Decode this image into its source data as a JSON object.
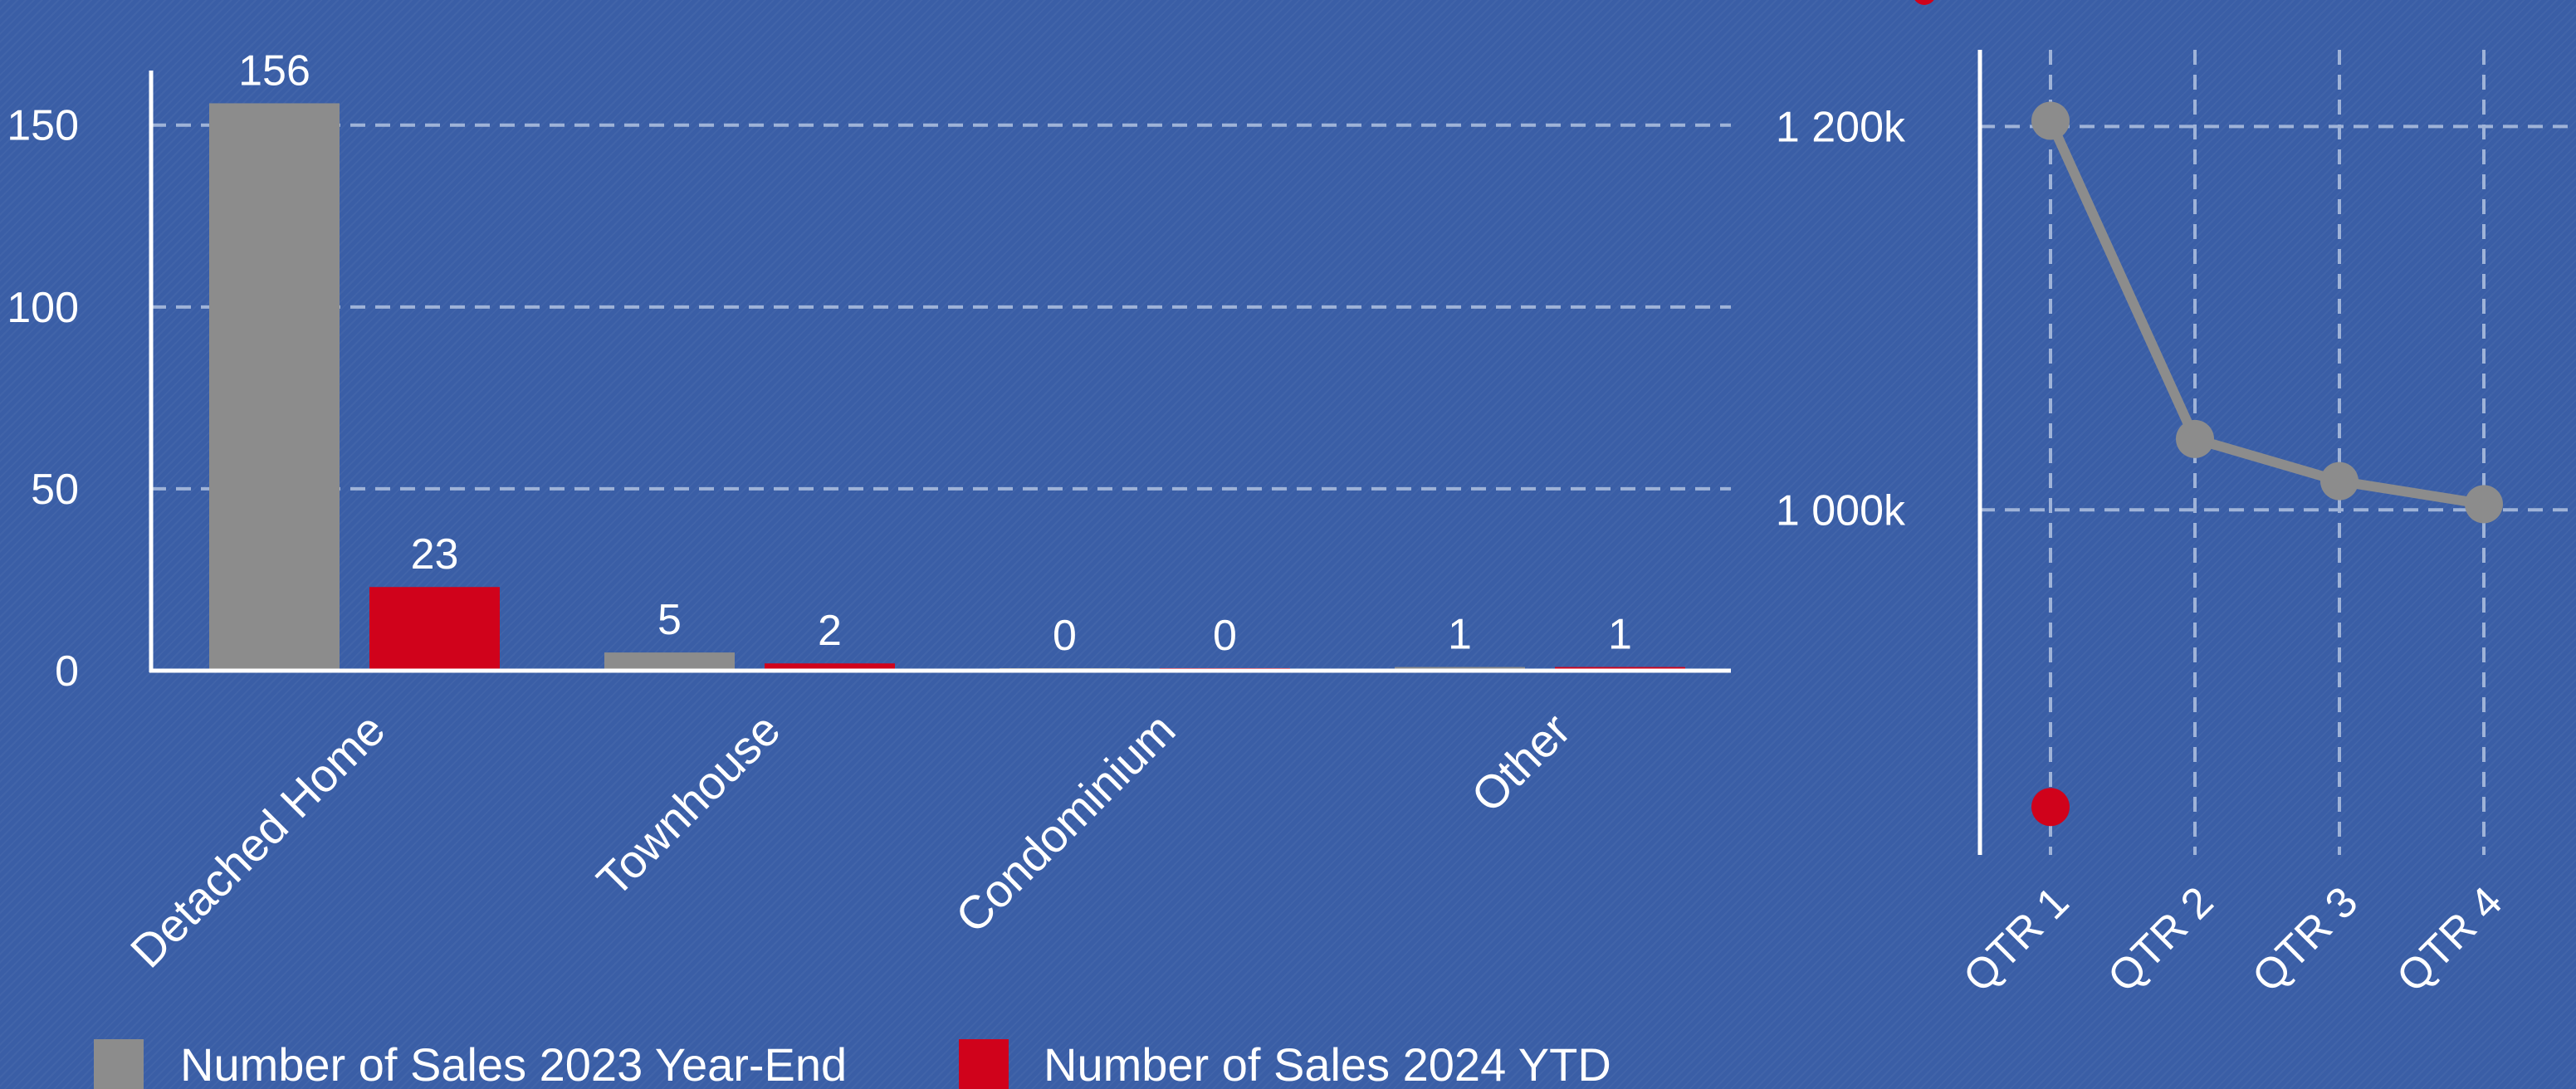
{
  "colors": {
    "background": "#3a5ea6",
    "series_2023": "#8c8c8c",
    "series_2024": "#d0021b",
    "axis": "#ffffff",
    "grid": "#9fb3d8",
    "text": "#ffffff"
  },
  "chart_data": [
    {
      "type": "bar",
      "categories": [
        "Detached Home",
        "Townhouse",
        "Condominium",
        "Other"
      ],
      "series": [
        {
          "name": "Number of Sales 2023 Year-End",
          "values": [
            156,
            5,
            0,
            1
          ],
          "color": "#8c8c8c"
        },
        {
          "name": "Number of Sales 2024 YTD",
          "values": [
            23,
            2,
            0,
            1
          ],
          "color": "#d0021b"
        }
      ],
      "yticks": [
        "0",
        "50",
        "100",
        "150"
      ],
      "ylim": [
        0,
        165
      ],
      "grid": true,
      "legend": "bottom-left"
    },
    {
      "type": "line",
      "categories": [
        "QTR 1",
        "QTR 2",
        "QTR 3",
        "QTR 4"
      ],
      "series": [
        {
          "values": [
            1203,
            1037,
            1015,
            1003
          ],
          "color": "#8c8c8c"
        },
        {
          "values": [
            845,
            null,
            null,
            null
          ],
          "color": "#d0021b"
        }
      ],
      "yticks": [
        "1 000k",
        "1 200k"
      ],
      "ylim": [
        820,
        1240
      ],
      "grid": true
    }
  ]
}
